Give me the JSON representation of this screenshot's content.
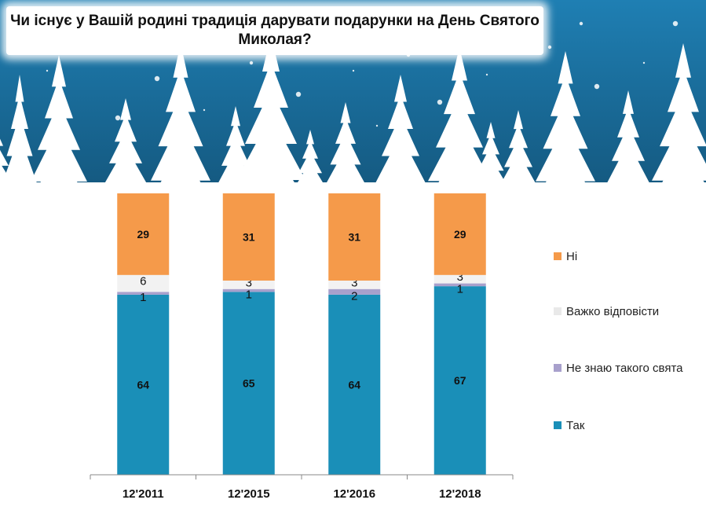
{
  "chart_data": {
    "type": "bar",
    "stacked": true,
    "title": "Чи існує у Вашій родині традиція дарувати подарунки  на День Святого Миколая?",
    "categories": [
      "12'2011",
      "12'2015",
      "12'2016",
      "12'2018"
    ],
    "series": [
      {
        "name": "Так",
        "values": [
          64,
          65,
          64,
          67
        ],
        "color": "#1a8fb8",
        "label_color": "#111111",
        "label_bold": true
      },
      {
        "name": "Не знаю такого свята",
        "values": [
          1,
          1,
          2,
          1
        ],
        "color": "#a8a0cc",
        "label_color": "#111111",
        "label_bold": false
      },
      {
        "name": "Важко відповісти",
        "values": [
          6,
          3,
          3,
          3
        ],
        "color": "#f2f2f2",
        "label_color": "#111111",
        "label_bold": false
      },
      {
        "name": "Ні",
        "values": [
          29,
          31,
          31,
          29
        ],
        "color": "#f59a4a",
        "label_color": "#111111",
        "label_bold": true
      }
    ],
    "legend_order": [
      "Ні",
      "Важко відповісти",
      "Не знаю такого свята",
      "Так"
    ],
    "legend_position": "right",
    "ylim": [
      0,
      100
    ],
    "grid": false
  },
  "background": {
    "sky_color": "#1b6fa0",
    "tree_color": "#ffffff"
  }
}
